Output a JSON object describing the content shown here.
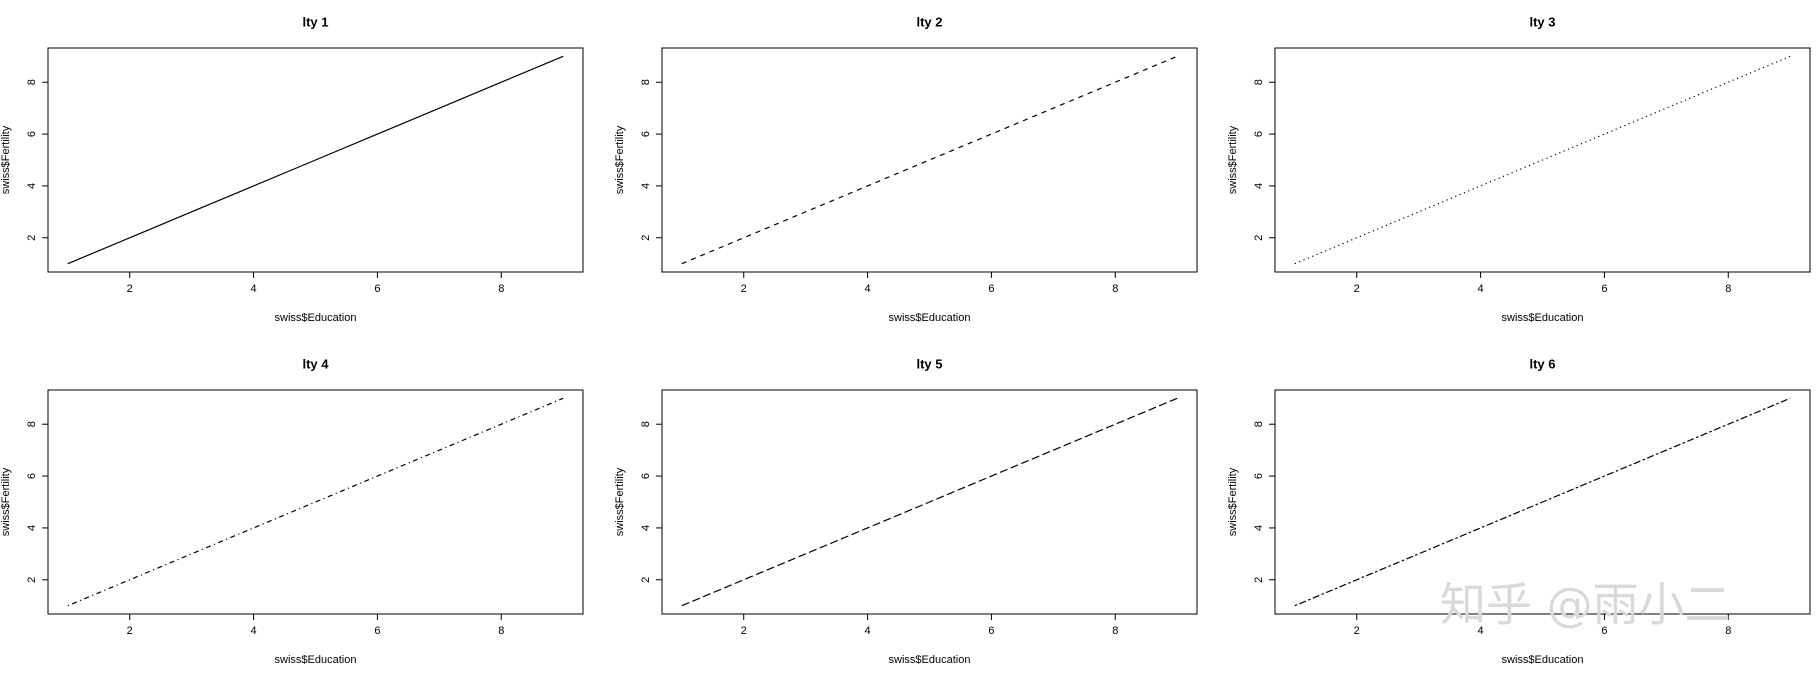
{
  "chart_data": [
    {
      "type": "line",
      "title": "lty 1",
      "x_label": "swiss$Education",
      "y_label": "swiss$Fertility",
      "x": [
        1,
        2,
        3,
        4,
        5,
        6,
        7,
        8,
        9
      ],
      "values": [
        1,
        2,
        3,
        4,
        5,
        6,
        7,
        8,
        9
      ],
      "color": "#000000",
      "line_style": "solid",
      "xlim": [
        0.68,
        9.32
      ],
      "ylim": [
        0.68,
        9.32
      ],
      "xticks": [
        2,
        4,
        6,
        8
      ],
      "yticks": [
        2,
        4,
        6,
        8
      ]
    },
    {
      "type": "line",
      "title": "lty 2",
      "x_label": "swiss$Education",
      "y_label": "swiss$Fertility",
      "x": [
        1,
        2,
        3,
        4,
        5,
        6,
        7,
        8,
        9
      ],
      "values": [
        1,
        2,
        3,
        4,
        5,
        6,
        7,
        8,
        9
      ],
      "color": "#000000",
      "line_style": "dashed",
      "xlim": [
        0.68,
        9.32
      ],
      "ylim": [
        0.68,
        9.32
      ],
      "xticks": [
        2,
        4,
        6,
        8
      ],
      "yticks": [
        2,
        4,
        6,
        8
      ]
    },
    {
      "type": "line",
      "title": "lty 3",
      "x_label": "swiss$Education",
      "y_label": "swiss$Fertility",
      "x": [
        1,
        2,
        3,
        4,
        5,
        6,
        7,
        8,
        9
      ],
      "values": [
        1,
        2,
        3,
        4,
        5,
        6,
        7,
        8,
        9
      ],
      "color": "#000000",
      "line_style": "dotted",
      "xlim": [
        0.68,
        9.32
      ],
      "ylim": [
        0.68,
        9.32
      ],
      "xticks": [
        2,
        4,
        6,
        8
      ],
      "yticks": [
        2,
        4,
        6,
        8
      ]
    },
    {
      "type": "line",
      "title": "lty 4",
      "x_label": "swiss$Education",
      "y_label": "swiss$Fertility",
      "x": [
        1,
        2,
        3,
        4,
        5,
        6,
        7,
        8,
        9
      ],
      "values": [
        1,
        2,
        3,
        4,
        5,
        6,
        7,
        8,
        9
      ],
      "color": "#000000",
      "line_style": "dotdash",
      "xlim": [
        0.68,
        9.32
      ],
      "ylim": [
        0.68,
        9.32
      ],
      "xticks": [
        2,
        4,
        6,
        8
      ],
      "yticks": [
        2,
        4,
        6,
        8
      ]
    },
    {
      "type": "line",
      "title": "lty 5",
      "x_label": "swiss$Education",
      "y_label": "swiss$Fertility",
      "x": [
        1,
        2,
        3,
        4,
        5,
        6,
        7,
        8,
        9
      ],
      "values": [
        1,
        2,
        3,
        4,
        5,
        6,
        7,
        8,
        9
      ],
      "color": "#000000",
      "line_style": "longdash",
      "xlim": [
        0.68,
        9.32
      ],
      "ylim": [
        0.68,
        9.32
      ],
      "xticks": [
        2,
        4,
        6,
        8
      ],
      "yticks": [
        2,
        4,
        6,
        8
      ]
    },
    {
      "type": "line",
      "title": "lty 6",
      "x_label": "swiss$Education",
      "y_label": "swiss$Fertility",
      "x": [
        1,
        2,
        3,
        4,
        5,
        6,
        7,
        8,
        9
      ],
      "values": [
        1,
        2,
        3,
        4,
        5,
        6,
        7,
        8,
        9
      ],
      "color": "#000000",
      "line_style": "twodash",
      "xlim": [
        0.68,
        9.32
      ],
      "ylim": [
        0.68,
        9.32
      ],
      "xticks": [
        2,
        4,
        6,
        8
      ],
      "yticks": [
        2,
        4,
        6,
        8
      ]
    }
  ],
  "watermark": "知乎 @雨小二"
}
